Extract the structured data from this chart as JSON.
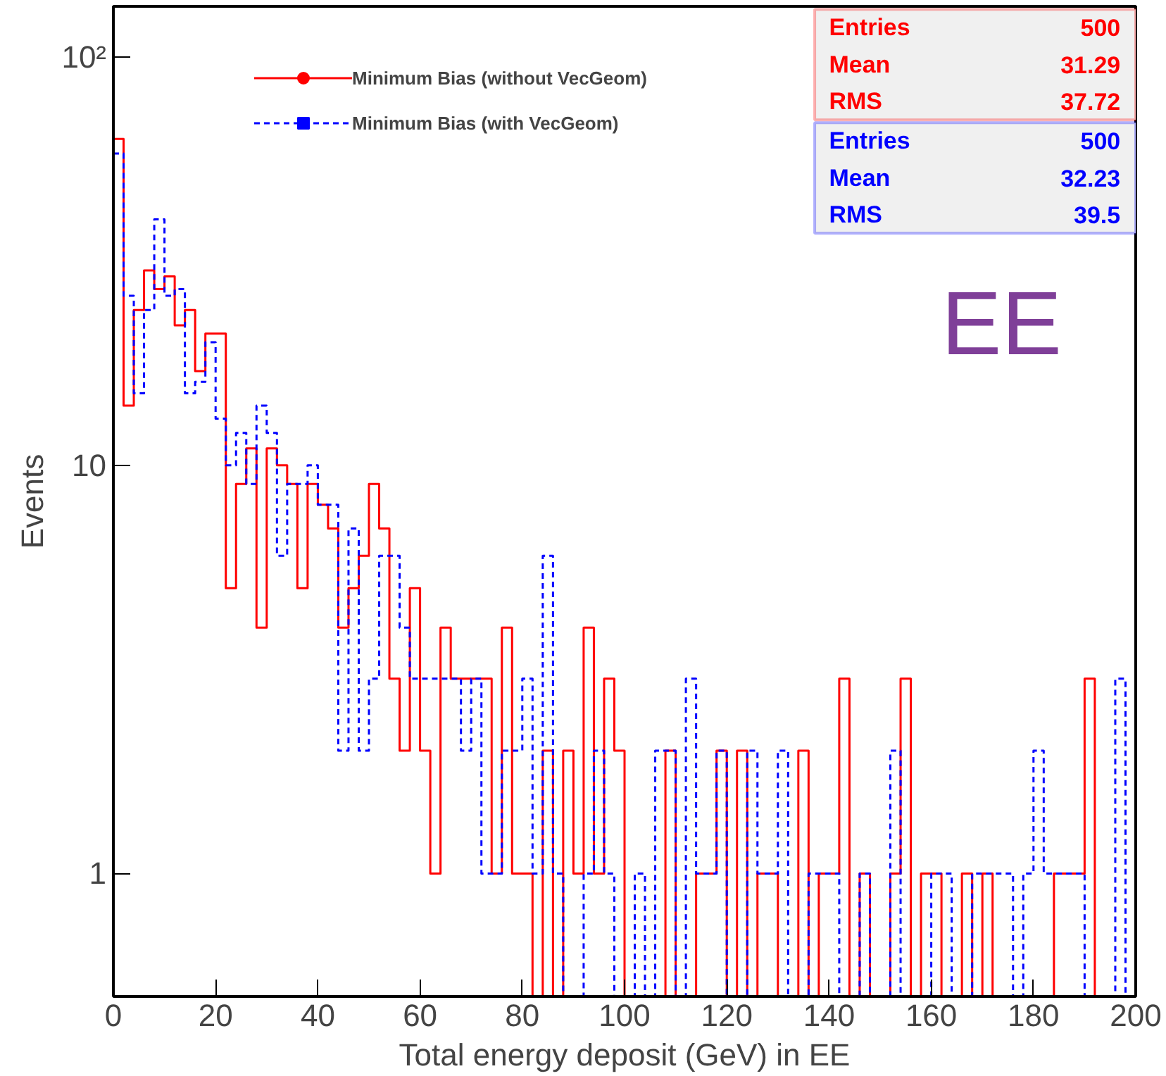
{
  "chart_data": {
    "type": "histogram",
    "xlabel": "Total energy deposit (GeV) in EE",
    "ylabel": "Events",
    "bins": [
      0,
      2,
      4,
      6,
      8,
      10,
      12,
      14,
      16,
      18,
      20,
      22,
      24,
      26,
      28,
      30,
      32,
      34,
      36,
      38,
      40,
      42,
      44,
      46,
      48,
      50,
      52,
      54,
      56,
      58,
      60,
      62,
      64,
      66,
      68,
      70,
      72,
      74,
      76,
      78,
      80,
      82,
      84,
      86,
      88,
      90,
      92,
      94,
      96,
      98,
      100,
      102,
      104,
      106,
      108,
      110,
      112,
      114,
      116,
      118,
      120,
      122,
      124,
      126,
      128,
      130,
      132,
      134,
      136,
      138,
      140,
      142,
      144,
      146,
      148,
      150,
      152,
      154,
      156,
      158,
      160,
      162,
      164,
      166,
      168,
      170,
      172,
      174,
      176,
      178,
      180,
      182,
      184,
      186,
      188,
      190,
      192,
      194,
      196,
      198,
      200
    ],
    "series": [
      {
        "name": "Minimum Bias (without VecGeom)",
        "color": "#ff0000",
        "line_style": "solid",
        "marker": "circle",
        "values": [
          63,
          14,
          24,
          30,
          27,
          29,
          22,
          24,
          17,
          21,
          21,
          5,
          9,
          11,
          4,
          11,
          10,
          9,
          5,
          9,
          8,
          7,
          4,
          5,
          6,
          9,
          7,
          3,
          2,
          5,
          2,
          1,
          4,
          3,
          3,
          3,
          3,
          1,
          4,
          1,
          1,
          null,
          2,
          null,
          2,
          1,
          4,
          1,
          3,
          2,
          null,
          null,
          null,
          null,
          2,
          null,
          null,
          1,
          1,
          2,
          null,
          2,
          null,
          1,
          1,
          null,
          null,
          2,
          null,
          1,
          1,
          3,
          null,
          1,
          null,
          null,
          1,
          3,
          null,
          1,
          1,
          null,
          null,
          1,
          null,
          1,
          null,
          null,
          null,
          null,
          null,
          null,
          1,
          1,
          1,
          3,
          null,
          null,
          null,
          null
        ]
      },
      {
        "name": "Minimum Bias (with VecGeom)",
        "color": "#0000ff",
        "line_style": "dashed",
        "marker": "square",
        "values": [
          58,
          26,
          15,
          24,
          40,
          26,
          27,
          15,
          16,
          20,
          13,
          10,
          12,
          9,
          14,
          12,
          6,
          9,
          9,
          10,
          8,
          8,
          2,
          7,
          2,
          3,
          6,
          6,
          4,
          3,
          3,
          3,
          3,
          3,
          2,
          3,
          1,
          1,
          2,
          2,
          3,
          1,
          6,
          1,
          null,
          null,
          1,
          2,
          1,
          null,
          null,
          1,
          null,
          2,
          2,
          null,
          3,
          1,
          1,
          2,
          null,
          null,
          2,
          1,
          1,
          2,
          null,
          null,
          1,
          1,
          1,
          null,
          null,
          1,
          null,
          null,
          2,
          null,
          null,
          null,
          1,
          1,
          null,
          null,
          1,
          1,
          1,
          1,
          null,
          1,
          2,
          1,
          1,
          1,
          1,
          null,
          null,
          null,
          3,
          null
        ]
      }
    ],
    "log": "y",
    "xlim": [
      0,
      200
    ],
    "ylim": [
      0.5,
      133
    ],
    "xticks": [
      0,
      20,
      40,
      60,
      80,
      100,
      120,
      140,
      160,
      180,
      200
    ],
    "yticks": [
      1,
      10,
      {
        "value": 100,
        "label": "10²"
      }
    ],
    "grid": false,
    "legend": "top left",
    "annotations": [
      "Entries 500",
      "Mean 31.29",
      "RMS 37.72",
      "Entries 500",
      "Mean 32.23",
      "RMS 39.5",
      "EE"
    ]
  }
}
